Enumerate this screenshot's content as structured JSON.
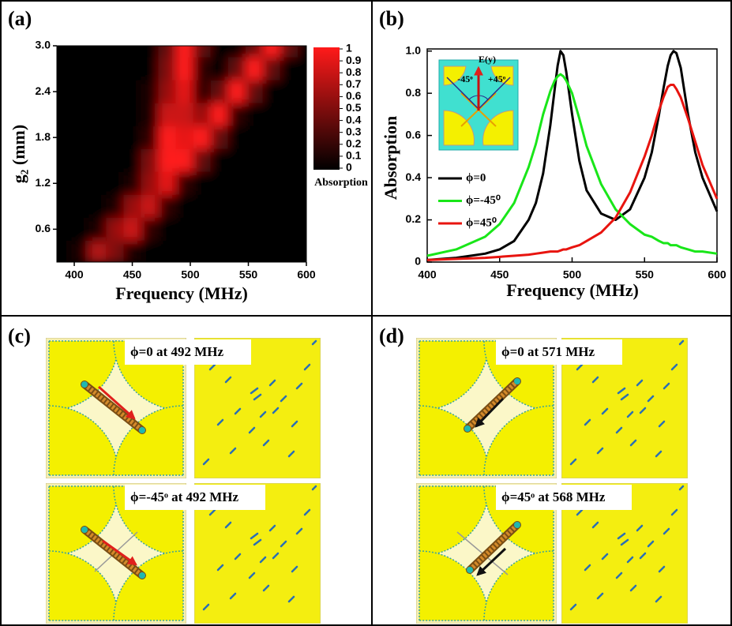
{
  "panel_labels": [
    "(a)",
    "(b)",
    "(c)",
    "(d)"
  ],
  "chart_data": [
    {
      "type": "heatmap",
      "x_label": "Frequency (MHz)",
      "y_label": "g₂ (mm)",
      "x": [
        390,
        405,
        420,
        435,
        450,
        465,
        480,
        495,
        510,
        525,
        540,
        555,
        570,
        585,
        600
      ],
      "y": [
        0.3,
        0.6,
        0.9,
        1.2,
        1.5,
        1.8,
        2.1,
        2.4,
        2.7,
        3.0
      ],
      "z": [
        [
          0,
          0.1,
          0.7,
          0.5,
          0.1,
          0,
          0,
          0,
          0,
          0,
          0,
          0,
          0,
          0,
          0
        ],
        [
          0,
          0,
          0.1,
          0.6,
          0.8,
          0.2,
          0,
          0,
          0,
          0,
          0,
          0,
          0,
          0,
          0
        ],
        [
          0,
          0,
          0,
          0.1,
          0.6,
          0.8,
          0.2,
          0,
          0,
          0,
          0,
          0,
          0,
          0,
          0
        ],
        [
          0,
          0,
          0,
          0,
          0.1,
          0.6,
          0.9,
          0.2,
          0,
          0,
          0,
          0,
          0,
          0,
          0
        ],
        [
          0,
          0,
          0,
          0,
          0,
          0.5,
          1,
          1,
          0.4,
          0,
          0,
          0,
          0,
          0,
          0
        ],
        [
          0,
          0,
          0,
          0,
          0,
          0.2,
          1,
          0.9,
          1,
          0.4,
          0,
          0,
          0,
          0,
          0
        ],
        [
          0,
          0,
          0,
          0,
          0,
          0.1,
          0.8,
          0.8,
          0.6,
          1,
          0.2,
          0,
          0,
          0,
          0
        ],
        [
          0,
          0,
          0,
          0,
          0,
          0.1,
          0.6,
          0.9,
          0.2,
          0.4,
          1,
          0.4,
          0,
          0,
          0
        ],
        [
          0,
          0,
          0,
          0,
          0,
          0,
          0.5,
          1,
          0.2,
          0,
          0.4,
          1,
          0.4,
          0,
          0
        ],
        [
          0,
          0,
          0,
          0,
          0,
          0,
          0.4,
          1,
          0.4,
          0,
          0,
          0.4,
          1,
          0.4,
          0
        ]
      ],
      "xlim": [
        385,
        600
      ],
      "xticks": [
        400,
        450,
        500,
        550,
        600
      ],
      "ylim": [
        0.17,
        3.0
      ],
      "yticks": [
        {
          "value": 3,
          "label": "3.0"
        },
        2.4,
        1.8,
        1.2,
        0.6
      ],
      "zlim": [
        0,
        1
      ],
      "zticks": [
        0,
        0.1,
        0.2,
        0.3,
        0.4,
        0.5,
        0.6,
        0.7,
        0.8,
        0.9,
        1
      ],
      "colorbar_label": "Absorption",
      "colors": [
        "#000000",
        "#ff1a1a"
      ]
    },
    {
      "type": "line",
      "x_label": "Frequency (MHz)",
      "y_label": "Absorption",
      "x": [
        400,
        420,
        440,
        450,
        460,
        470,
        475,
        480,
        485,
        488,
        490,
        492,
        494,
        496,
        500,
        505,
        510,
        520,
        530,
        540,
        550,
        555,
        560,
        563,
        566,
        568,
        570,
        572,
        575,
        580,
        585,
        590,
        600
      ],
      "series": [
        {
          "name": "ϕ=0",
          "color": "#000000",
          "values": [
            0.01,
            0.02,
            0.04,
            0.06,
            0.1,
            0.2,
            0.28,
            0.42,
            0.65,
            0.82,
            0.93,
            1.0,
            0.98,
            0.9,
            0.7,
            0.48,
            0.34,
            0.23,
            0.2,
            0.25,
            0.4,
            0.52,
            0.7,
            0.82,
            0.93,
            0.98,
            1.0,
            0.99,
            0.92,
            0.7,
            0.52,
            0.4,
            0.24
          ]
        },
        {
          "name": "ϕ=-45⁰",
          "color": "#19e619",
          "values": [
            0.03,
            0.06,
            0.12,
            0.18,
            0.28,
            0.45,
            0.56,
            0.7,
            0.81,
            0.86,
            0.88,
            0.89,
            0.88,
            0.86,
            0.8,
            0.68,
            0.55,
            0.37,
            0.25,
            0.18,
            0.13,
            0.12,
            0.1,
            0.09,
            0.09,
            0.08,
            0.08,
            0.08,
            0.07,
            0.06,
            0.05,
            0.05,
            0.04
          ]
        },
        {
          "name": "ϕ=45⁰",
          "color": "#e8140f",
          "values": [
            0.01,
            0.015,
            0.02,
            0.025,
            0.03,
            0.035,
            0.04,
            0.045,
            0.05,
            0.05,
            0.05,
            0.055,
            0.06,
            0.06,
            0.07,
            0.08,
            0.1,
            0.14,
            0.21,
            0.33,
            0.5,
            0.6,
            0.72,
            0.78,
            0.83,
            0.84,
            0.84,
            0.82,
            0.78,
            0.68,
            0.57,
            0.46,
            0.3
          ]
        }
      ],
      "xlim": [
        400,
        600
      ],
      "xticks": [
        400,
        450,
        500,
        550,
        600
      ],
      "ylim": [
        0,
        1.01
      ],
      "yticks": [
        0,
        0.2,
        0.4,
        0.6,
        0.8,
        {
          "value": 1,
          "label": "1.0"
        }
      ],
      "legend": "left",
      "annotations": [
        "E(y)",
        "-45ᵒ",
        "+45ᵒ"
      ]
    }
  ],
  "field_maps": [
    {
      "captions": [
        "ϕ=0 at 492 MHz",
        "ϕ=-45ᵒ at 492 MHz"
      ]
    },
    {
      "captions": [
        "ϕ=0 at 571 MHz",
        "ϕ=45ᵒ at 568 MHz"
      ]
    }
  ]
}
